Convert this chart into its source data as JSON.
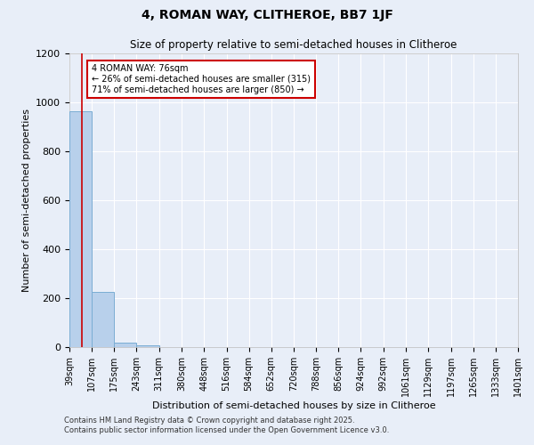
{
  "title": "4, ROMAN WAY, CLITHEROE, BB7 1JF",
  "subtitle": "Size of property relative to semi-detached houses in Clitheroe",
  "xlabel": "Distribution of semi-detached houses by size in Clitheroe",
  "ylabel": "Number of semi-detached properties",
  "bin_edges": [
    39,
    107,
    175,
    243,
    311,
    380,
    448,
    516,
    584,
    652,
    720,
    788,
    856,
    924,
    992,
    1061,
    1129,
    1197,
    1265,
    1333,
    1401
  ],
  "counts": [
    965,
    225,
    20,
    8,
    0,
    0,
    0,
    0,
    0,
    0,
    0,
    0,
    0,
    0,
    0,
    0,
    0,
    0,
    0,
    0
  ],
  "bar_color": "#b8d0eb",
  "bar_edge_color": "#7aadd4",
  "ylim": [
    0,
    1200
  ],
  "xlim": [
    39,
    1401
  ],
  "property_size": 76,
  "property_line_color": "#cc0000",
  "annotation_text": "4 ROMAN WAY: 76sqm\n← 26% of semi-detached houses are smaller (315)\n71% of semi-detached houses are larger (850) →",
  "annotation_box_facecolor": "#ffffff",
  "annotation_box_edgecolor": "#cc0000",
  "footer_line1": "Contains HM Land Registry data © Crown copyright and database right 2025.",
  "footer_line2": "Contains public sector information licensed under the Open Government Licence v3.0.",
  "background_color": "#e8eef8",
  "grid_color": "#ffffff",
  "title_fontsize": 10,
  "subtitle_fontsize": 8.5,
  "tick_fontsize": 7,
  "ylabel_fontsize": 8,
  "xlabel_fontsize": 8,
  "annotation_fontsize": 7,
  "footer_fontsize": 6
}
